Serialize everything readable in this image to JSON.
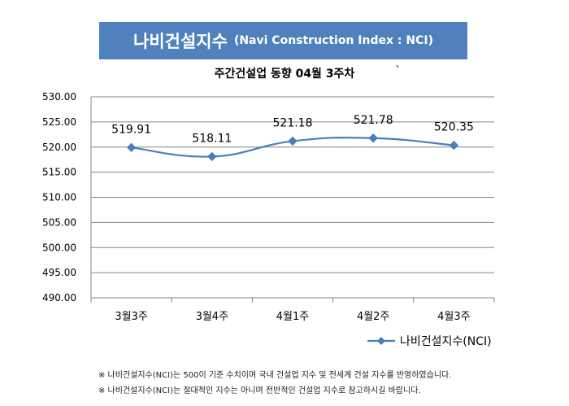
{
  "banner": {
    "title": "나비건설지수",
    "title_en": "(Navi Construction Index : NCI)"
  },
  "stray_mark": "`",
  "chart_data": {
    "type": "line",
    "title": "주간건설업 동향 04월 3주차",
    "xlabel": "",
    "ylabel": "",
    "categories": [
      "3월3주",
      "3월4주",
      "4월1주",
      "4월2주",
      "4월3주"
    ],
    "series": [
      {
        "name": "나비건설지수(NCI)",
        "values": [
          519.91,
          518.11,
          521.18,
          521.78,
          520.35
        ],
        "color": "#4a7ebb"
      }
    ],
    "data_labels": [
      "519.91",
      "518.11",
      "521.18",
      "521.78",
      "520.35"
    ],
    "ylim": [
      490,
      530
    ],
    "yticks": [
      "490.00",
      "495.00",
      "500.00",
      "505.00",
      "510.00",
      "515.00",
      "520.00",
      "525.00",
      "530.00"
    ],
    "grid": true,
    "legend": "bottom-right",
    "smooth": true
  },
  "notes": [
    "※ 나비건설지수(NCI)는 500이 기준 수치이며 국내 건설업 지수 및 전세계 건설 지수를 반영하였습니다.",
    "※ 나비건설지수(NCI)는 절대적인 지수는 아니며 전반적인 건설업 지수로 참고하시길 바랍니다."
  ]
}
